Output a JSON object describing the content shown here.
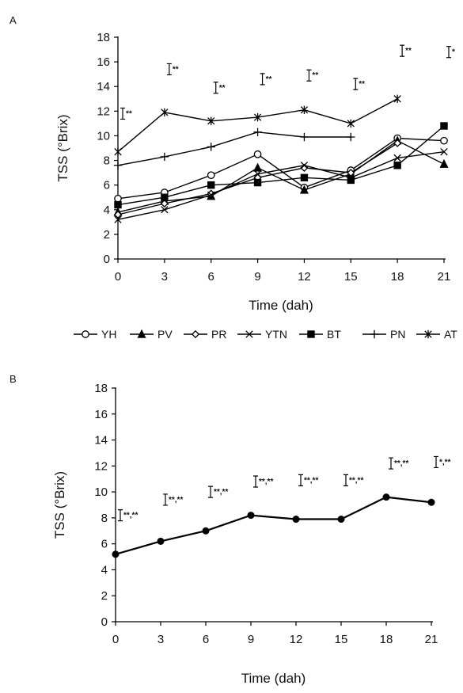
{
  "chart_data": [
    {
      "panel_label": "A",
      "type": "line",
      "xlabel": "Time (dah)",
      "ylabel": "TSS (°Brix)",
      "ylim": [
        0,
        18
      ],
      "x": [
        0,
        3,
        6,
        9,
        12,
        15,
        18,
        21
      ],
      "x_tick_labels": [
        "0",
        "3",
        "6",
        "9",
        "12",
        "15",
        "18",
        "21"
      ],
      "y_ticks": [
        0,
        2,
        4,
        6,
        8,
        10,
        12,
        14,
        16,
        18
      ],
      "y_tick_labels": [
        "0",
        "2",
        "4",
        "6",
        "8",
        "10",
        "12",
        "14",
        "16",
        "18"
      ],
      "legend_position": "bottom",
      "series": [
        {
          "name": "YH",
          "marker": "open-circle",
          "values": [
            4.9,
            5.4,
            6.8,
            8.5,
            5.8,
            7.2,
            9.8,
            9.6
          ]
        },
        {
          "name": "PV",
          "marker": "filled-triangle",
          "values": [
            3.8,
            4.7,
            5.1,
            7.4,
            5.6,
            6.9,
            9.6,
            7.7
          ]
        },
        {
          "name": "PR",
          "marker": "open-diamond",
          "values": [
            3.6,
            4.5,
            5.3,
            6.6,
            7.4,
            7.0,
            9.4,
            null
          ]
        },
        {
          "name": "YTN",
          "marker": "cross",
          "values": [
            3.2,
            4.0,
            5.2,
            6.9,
            7.6,
            6.6,
            8.2,
            8.7
          ]
        },
        {
          "name": "BT",
          "marker": "filled-square",
          "values": [
            4.4,
            5.0,
            6.0,
            6.2,
            6.6,
            6.4,
            7.6,
            10.8
          ]
        },
        {
          "name": "PN",
          "marker": "plus",
          "values": [
            7.6,
            8.3,
            9.1,
            10.3,
            9.9,
            9.9,
            null,
            null
          ]
        },
        {
          "name": "AT",
          "marker": "asterisk",
          "values": [
            8.7,
            11.9,
            11.2,
            11.5,
            12.1,
            11.0,
            13.0,
            null
          ]
        }
      ],
      "significance": [
        {
          "x": 0,
          "y": 11.8,
          "label": "**"
        },
        {
          "x": 3,
          "y": 15.4,
          "label": "**"
        },
        {
          "x": 6,
          "y": 13.9,
          "label": "**"
        },
        {
          "x": 9,
          "y": 14.6,
          "label": "**"
        },
        {
          "x": 12,
          "y": 14.9,
          "label": "**"
        },
        {
          "x": 15,
          "y": 14.2,
          "label": "**"
        },
        {
          "x": 18,
          "y": 16.9,
          "label": "**"
        },
        {
          "x": 21,
          "y": 16.8,
          "label": "*"
        }
      ]
    },
    {
      "panel_label": "B",
      "type": "line",
      "xlabel": "Time (dah)",
      "ylabel": "TSS (°Brix)",
      "ylim": [
        0,
        18
      ],
      "x": [
        0,
        3,
        6,
        9,
        12,
        15,
        18,
        21
      ],
      "x_tick_labels": [
        "0",
        "3",
        "6",
        "9",
        "12",
        "15",
        "18",
        "21"
      ],
      "y_ticks": [
        0,
        2,
        4,
        6,
        8,
        10,
        12,
        14,
        16,
        18
      ],
      "y_tick_labels": [
        "0",
        "2",
        "4",
        "6",
        "8",
        "10",
        "12",
        "14",
        "16",
        "18"
      ],
      "series": [
        {
          "name": "",
          "marker": "filled-circle",
          "values": [
            5.2,
            6.2,
            7.0,
            8.2,
            7.9,
            7.9,
            9.6,
            9.2
          ]
        }
      ],
      "significance": [
        {
          "x": 0,
          "y": 8.2,
          "label": "**,**"
        },
        {
          "x": 3,
          "y": 9.4,
          "label": "**,**"
        },
        {
          "x": 6,
          "y": 10.0,
          "label": "**,**"
        },
        {
          "x": 9,
          "y": 10.8,
          "label": "**,**"
        },
        {
          "x": 12,
          "y": 10.9,
          "label": "**,**"
        },
        {
          "x": 15,
          "y": 10.9,
          "label": "**,**"
        },
        {
          "x": 18,
          "y": 12.2,
          "label": "**,**"
        },
        {
          "x": 21,
          "y": 12.3,
          "label": "*,**"
        }
      ]
    }
  ]
}
